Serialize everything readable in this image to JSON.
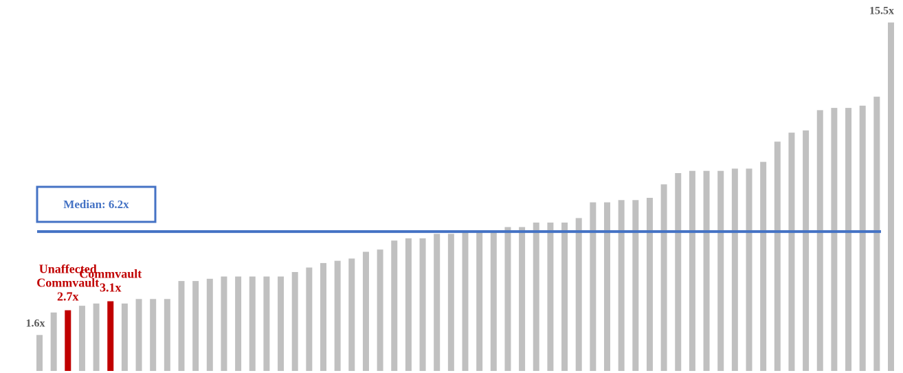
{
  "chart_data": {
    "type": "bar",
    "title": "",
    "xlabel": "",
    "ylabel": "",
    "ylim": [
      0,
      16.5
    ],
    "grid": false,
    "legend": "none",
    "colors": {
      "default": "#c0c0c0",
      "highlight": "#c00000",
      "median": "#4472c4",
      "label": "#595959"
    },
    "values": [
      1.6,
      2.6,
      2.7,
      2.9,
      3.0,
      3.1,
      3.0,
      3.2,
      3.2,
      3.2,
      4.0,
      4.0,
      4.1,
      4.2,
      4.2,
      4.2,
      4.2,
      4.2,
      4.4,
      4.6,
      4.8,
      4.9,
      5.0,
      5.3,
      5.4,
      5.8,
      5.9,
      5.9,
      6.1,
      6.1,
      6.2,
      6.2,
      6.2,
      6.4,
      6.4,
      6.6,
      6.6,
      6.6,
      6.8,
      7.5,
      7.5,
      7.6,
      7.6,
      7.7,
      8.3,
      8.8,
      8.9,
      8.9,
      8.9,
      9.0,
      9.0,
      9.3,
      10.2,
      10.6,
      10.7,
      11.6,
      11.7,
      11.7,
      11.8,
      12.2,
      15.5
    ],
    "highlight": [
      {
        "index": 2,
        "value": 2.7,
        "label_lines": [
          "Unaffected",
          "Commvault",
          "2.7x"
        ]
      },
      {
        "index": 5,
        "value": 3.1,
        "label_lines": [
          "Commvault",
          "3.1x"
        ]
      }
    ],
    "end_labels": [
      {
        "index": 0,
        "text": "1.6x"
      },
      {
        "index": 60,
        "text": "15.5x"
      }
    ],
    "median": {
      "value": 6.2,
      "label": "Median: 6.2x"
    }
  }
}
